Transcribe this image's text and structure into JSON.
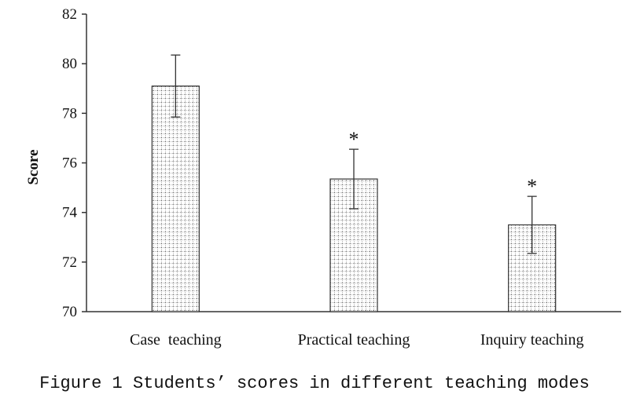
{
  "chart_data": {
    "type": "bar",
    "categories": [
      "Case  teaching",
      "Practical teaching",
      "Inquiry teaching"
    ],
    "values": [
      79.1,
      75.35,
      73.5
    ],
    "errors": [
      1.25,
      1.2,
      1.15
    ],
    "significance": [
      "",
      "*",
      "*"
    ],
    "ylabel": "Score",
    "xlabel": "",
    "ylim": [
      70,
      82
    ],
    "yticks": [
      70,
      72,
      74,
      76,
      78,
      80,
      82
    ],
    "grid": false,
    "bar_pattern": "dotted-grid"
  },
  "caption": "Figure 1 Students’ scores in different teaching modes"
}
